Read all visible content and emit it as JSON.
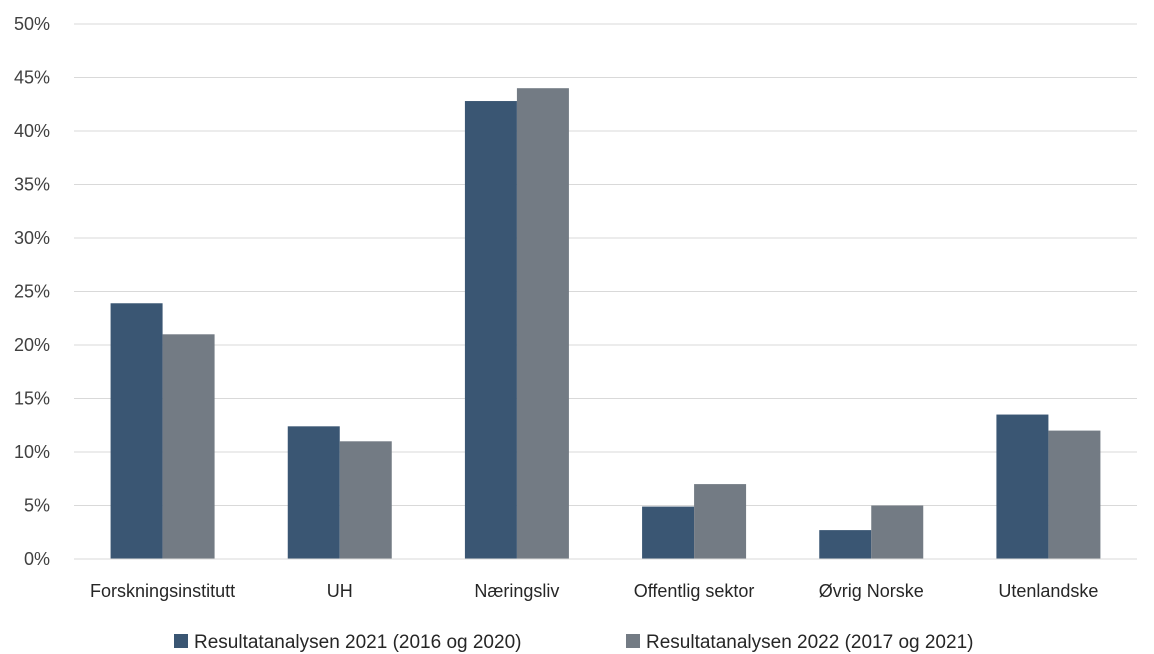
{
  "chart_data": {
    "type": "bar",
    "categories": [
      "Forskningsinstitutt",
      "UH",
      "Næringsliv",
      "Offentlig sektor",
      "Øvrig Norske",
      "Utenlandske"
    ],
    "series": [
      {
        "name": "Resultatanalysen 2021 (2016 og 2020)",
        "color": "#3a5673",
        "values": [
          23.9,
          12.4,
          42.8,
          4.9,
          2.7,
          13.5
        ]
      },
      {
        "name": "Resultatanalysen 2022 (2017 og 2021)",
        "color": "#737b84",
        "values": [
          21.0,
          11.0,
          44.0,
          7.0,
          5.0,
          12.0
        ]
      }
    ],
    "y_ticks": [
      "0%",
      "5%",
      "10%",
      "15%",
      "20%",
      "25%",
      "30%",
      "35%",
      "40%",
      "45%",
      "50%"
    ],
    "ylim": [
      0,
      50
    ],
    "y_unit": "%",
    "grid": true,
    "legend_position": "bottom",
    "title": "",
    "xlabel": "",
    "ylabel": ""
  }
}
